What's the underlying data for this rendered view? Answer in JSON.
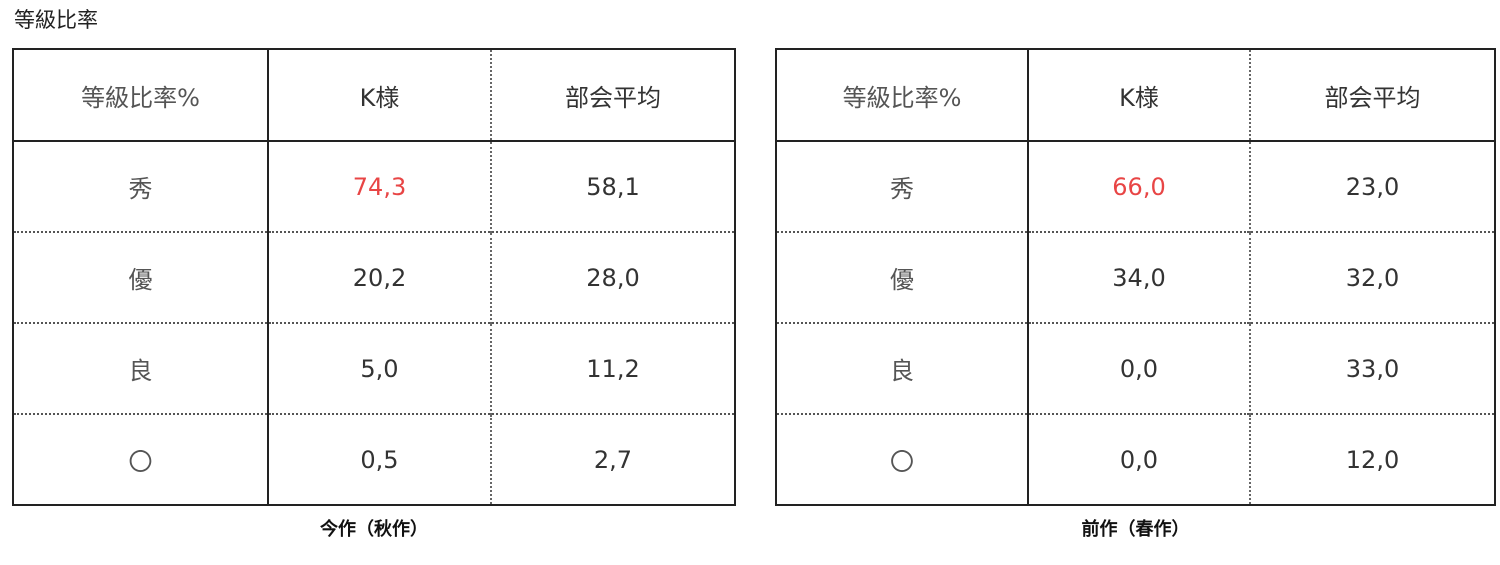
{
  "title": "等級比率",
  "tables": [
    {
      "caption": "今作（秋作）",
      "headers": [
        "等級比率%",
        "K様",
        "部会平均"
      ],
      "rows": [
        {
          "grade": "秀",
          "k": "74,3",
          "avg": "58,1",
          "highlight": true
        },
        {
          "grade": "優",
          "k": "20,2",
          "avg": "28,0"
        },
        {
          "grade": "良",
          "k": "5,0",
          "avg": "11,2"
        },
        {
          "grade": "〇",
          "k": "0,5",
          "avg": "2,7"
        }
      ]
    },
    {
      "caption": "前作（春作）",
      "headers": [
        "等級比率%",
        "K様",
        "部会平均"
      ],
      "rows": [
        {
          "grade": "秀",
          "k": "66,0",
          "avg": "23,0",
          "highlight": true
        },
        {
          "grade": "優",
          "k": "34,0",
          "avg": "32,0"
        },
        {
          "grade": "良",
          "k": "0,0",
          "avg": "33,0"
        },
        {
          "grade": "〇",
          "k": "0,0",
          "avg": "12,0"
        }
      ]
    }
  ],
  "colors": {
    "highlight": "#e84545"
  }
}
